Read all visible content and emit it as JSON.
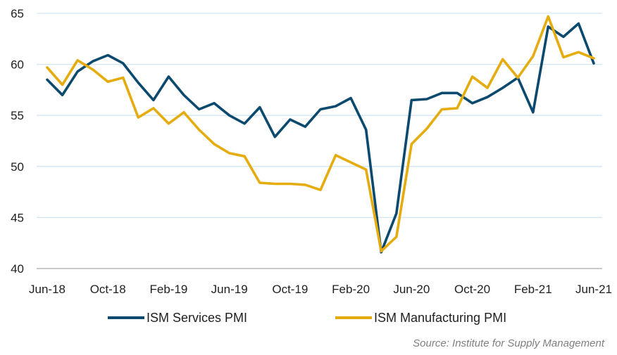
{
  "chart_data": {
    "type": "line",
    "title": "",
    "xlabel": "",
    "ylabel": "",
    "ylim": [
      40,
      65
    ],
    "yticks": [
      40,
      45,
      50,
      55,
      60,
      65
    ],
    "grid": true,
    "legend_position": "bottom",
    "x": [
      "Jun-18",
      "Jul-18",
      "Aug-18",
      "Sep-18",
      "Oct-18",
      "Nov-18",
      "Dec-18",
      "Jan-19",
      "Feb-19",
      "Mar-19",
      "Apr-19",
      "May-19",
      "Jun-19",
      "Jul-19",
      "Aug-19",
      "Sep-19",
      "Oct-19",
      "Nov-19",
      "Dec-19",
      "Jan-20",
      "Feb-20",
      "Mar-20",
      "Apr-20",
      "May-20",
      "Jun-20",
      "Jul-20",
      "Aug-20",
      "Sep-20",
      "Oct-20",
      "Nov-20",
      "Dec-20",
      "Jan-21",
      "Feb-21",
      "Mar-21",
      "Apr-21",
      "May-21",
      "Jun-21"
    ],
    "xtick_labels": [
      "Jun-18",
      "Oct-18",
      "Feb-19",
      "Jun-19",
      "Oct-19",
      "Feb-20",
      "Jun-20",
      "Oct-20",
      "Feb-21",
      "Jun-21"
    ],
    "series": [
      {
        "name": "ISM Services PMI",
        "color": "#0b4a6e",
        "values": [
          58.5,
          57.0,
          59.3,
          60.3,
          60.9,
          60.1,
          58.2,
          56.5,
          58.8,
          57.0,
          55.6,
          56.2,
          55.0,
          54.2,
          55.8,
          52.9,
          54.6,
          53.9,
          55.6,
          55.9,
          56.7,
          53.6,
          41.6,
          45.4,
          56.5,
          56.6,
          57.2,
          57.2,
          56.2,
          56.8,
          57.7,
          58.7,
          55.3,
          63.7,
          62.7,
          64.0,
          60.1
        ]
      },
      {
        "name": "ISM Manufacturing PMI",
        "color": "#e5ac10",
        "values": [
          59.7,
          58.0,
          60.4,
          59.5,
          58.3,
          58.7,
          54.8,
          55.7,
          54.2,
          55.3,
          53.6,
          52.2,
          51.3,
          51.0,
          48.4,
          48.3,
          48.3,
          48.2,
          47.7,
          51.1,
          50.4,
          49.7,
          41.7,
          43.1,
          52.2,
          53.7,
          55.6,
          55.7,
          58.8,
          57.7,
          60.5,
          58.7,
          60.8,
          64.7,
          60.7,
          61.2,
          60.6
        ]
      }
    ]
  },
  "source": "Source: Institute for Supply Management"
}
